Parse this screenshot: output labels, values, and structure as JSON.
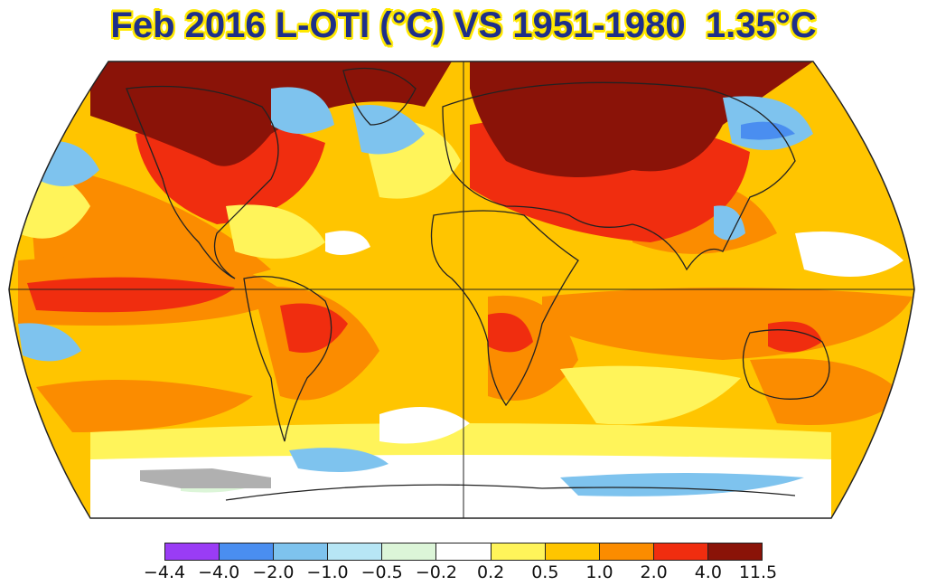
{
  "title": "Feb 2016 L-OTI (°C) VS 1951-1980  1.35°C",
  "map": {
    "projection": "robinson",
    "graticule": [
      "equator",
      "prime-meridian"
    ],
    "land_outline_color": "#222222",
    "missing_data_color": "#b0b0b0"
  },
  "legend": {
    "colors": [
      "#9a3cf5",
      "#4a8ef0",
      "#7ec3ee",
      "#b7e6f5",
      "#dcf5d8",
      "#ffffff",
      "#fff45a",
      "#ffc500",
      "#fb8c00",
      "#f02d0f",
      "#8a1308"
    ],
    "ticks": [
      "−4.4",
      "−4.0",
      "−2.0",
      "−1.0",
      "−0.5",
      "−0.2",
      "0.2",
      "0.5",
      "1.0",
      "2.0",
      "4.0",
      "11.5"
    ]
  }
}
